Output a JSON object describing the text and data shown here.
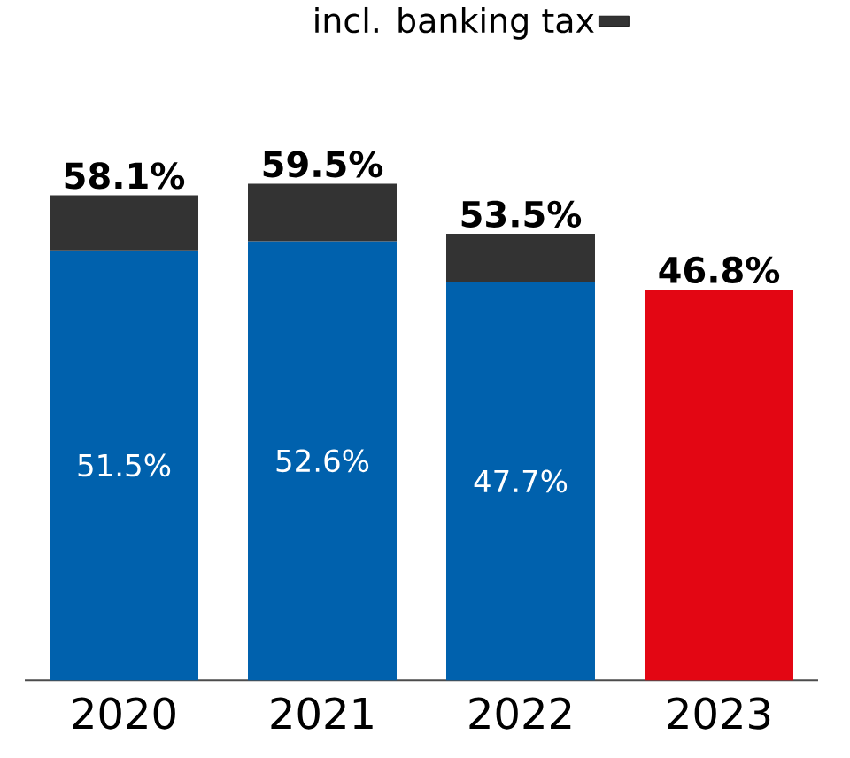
{
  "chart_data": {
    "type": "bar",
    "categories": [
      "2020",
      "2021",
      "2022",
      "2023"
    ],
    "stacked": true,
    "legend": "top",
    "series": [
      {
        "colors": [
          "#0061ad",
          "#0061ad",
          "#0061ad",
          "#e30613"
        ],
        "values": [
          51.5,
          52.6,
          47.7,
          46.8
        ],
        "value_labels": [
          "51.5%",
          "52.6%",
          "47.7%",
          null
        ]
      },
      {
        "name": "incl. banking tax",
        "color": "#333333",
        "values": [
          6.6,
          6.9,
          5.8,
          null
        ]
      }
    ],
    "totals": [
      "58.1%",
      "59.5%",
      "53.5%",
      "46.8%"
    ]
  }
}
